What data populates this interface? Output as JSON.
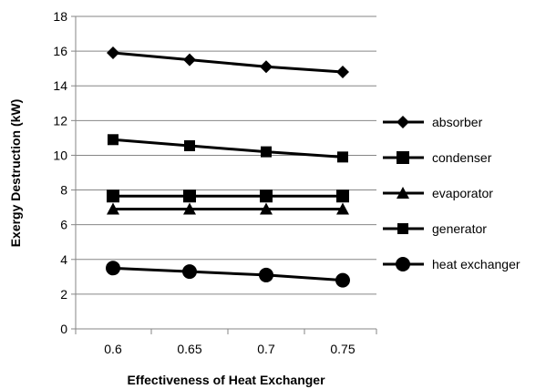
{
  "chart_data": {
    "type": "line",
    "title": "",
    "xlabel": "Effectiveness of Heat Exchanger",
    "ylabel": "Exergy Destruction (kW)",
    "x": [
      0.6,
      0.65,
      0.7,
      0.75
    ],
    "x_tick_labels": [
      "0.6",
      "0.65",
      "0.7",
      "0.75"
    ],
    "ylim": [
      0,
      18
    ],
    "y_ticks": [
      0,
      2,
      4,
      6,
      8,
      10,
      12,
      14,
      16,
      18
    ],
    "grid": "horizontal",
    "legend_position": "right",
    "series": [
      {
        "name": "absorber",
        "marker": "diamond",
        "values": [
          15.9,
          15.5,
          15.1,
          14.8
        ]
      },
      {
        "name": "condenser",
        "marker": "square",
        "values": [
          7.65,
          7.65,
          7.65,
          7.65
        ]
      },
      {
        "name": "evaporator",
        "marker": "triangle",
        "values": [
          6.9,
          6.9,
          6.9,
          6.9
        ]
      },
      {
        "name": "generator",
        "marker": "square-small",
        "values": [
          10.9,
          10.55,
          10.2,
          9.9
        ]
      },
      {
        "name": "heat exchanger",
        "marker": "circle",
        "values": [
          3.5,
          3.3,
          3.1,
          2.8
        ]
      }
    ],
    "colors": {
      "line": "#000000",
      "grid": "#868686",
      "axis": "#868686"
    }
  }
}
